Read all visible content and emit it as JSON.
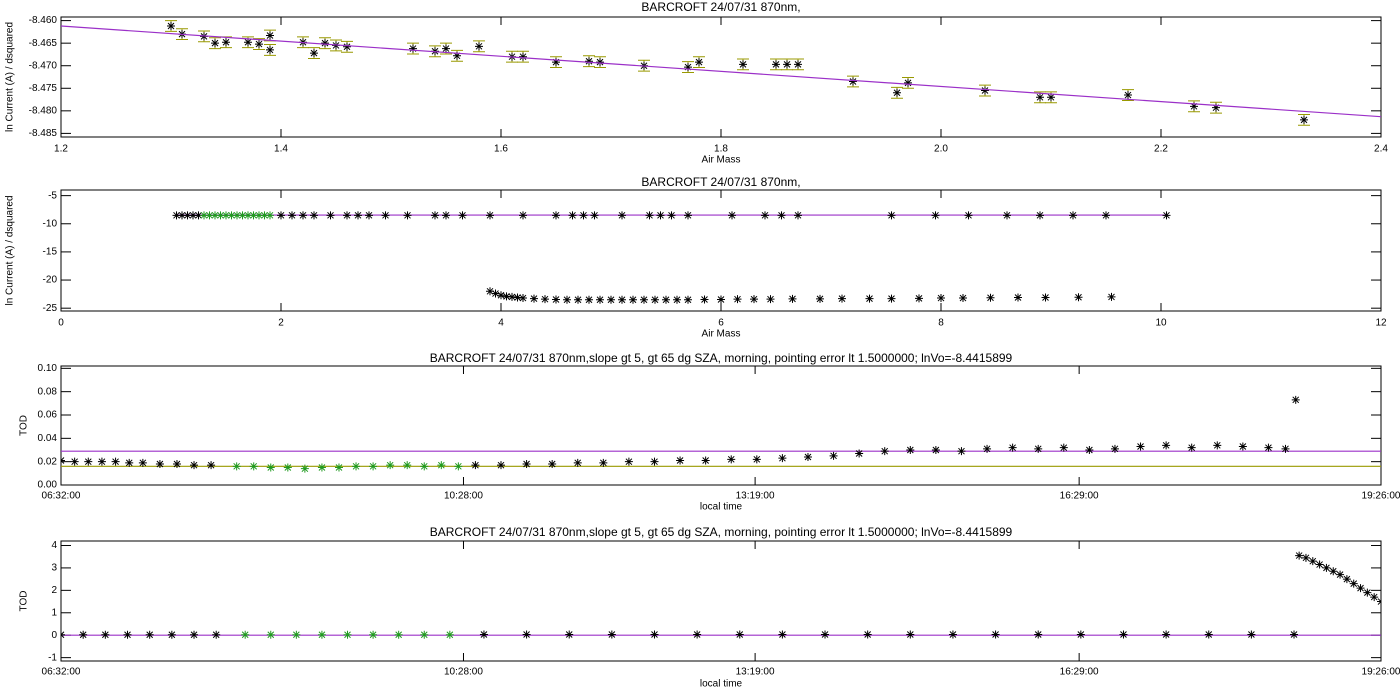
{
  "chart_data": [
    {
      "type": "scatter",
      "title": "BARCROFT 24/07/31 870nm,",
      "x_label": "Air Mass",
      "y_label": "ln Current (A) / dsquared",
      "xlim": [
        1.2,
        2.4
      ],
      "xticks": [
        1.2,
        1.4,
        1.6,
        1.8,
        {
          "value": 2,
          "label": "2.0"
        },
        2.2,
        2.4
      ],
      "ylim": [
        -8.4858,
        -8.4592
      ],
      "yticks": [
        {
          "value": -8.46,
          "label": "-8.460"
        },
        {
          "value": -8.465,
          "label": "-8.465"
        },
        {
          "value": -8.47,
          "label": "-8.470"
        },
        {
          "value": -8.475,
          "label": "-8.475"
        },
        {
          "value": -8.48,
          "label": "-8.480"
        },
        {
          "value": -8.485,
          "label": "-8.485"
        }
      ],
      "series": [
        {
          "marker": "asterisk",
          "color": "#000000",
          "error_color": "#999900",
          "x": [
            1.3,
            1.31,
            1.33,
            1.34,
            1.35,
            1.37,
            1.38,
            1.39,
            1.39,
            1.42,
            1.43,
            1.44,
            1.45,
            1.46,
            1.52,
            1.54,
            1.55,
            1.56,
            1.58,
            1.61,
            1.62,
            1.65,
            1.68,
            1.69,
            1.73,
            1.77,
            1.78,
            1.82,
            1.85,
            1.86,
            1.87,
            1.92,
            1.96,
            1.97,
            2.04,
            2.09,
            2.1,
            2.17,
            2.23,
            2.25,
            2.33
          ],
          "values": [
            -8.4612,
            -8.463,
            -8.4635,
            -8.465,
            -8.4648,
            -8.4648,
            -8.4652,
            -8.4665,
            -8.4633,
            -8.4648,
            -8.4672,
            -8.465,
            -8.4655,
            -8.4658,
            -8.4662,
            -8.4668,
            -8.4662,
            -8.4678,
            -8.4657,
            -8.468,
            -8.468,
            -8.4692,
            -8.469,
            -8.4692,
            -8.47,
            -8.4703,
            -8.4692,
            -8.4697,
            -8.4697,
            -8.4697,
            -8.4697,
            -8.4735,
            -8.476,
            -8.4738,
            -8.4755,
            -8.477,
            -8.477,
            -8.4765,
            -8.479,
            -8.4793,
            -8.482
          ],
          "errors": [
            0.0012,
            0.0012,
            0.0012,
            0.0012,
            0.0012,
            0.0012,
            0.0012,
            0.0012,
            0.0012,
            0.0012,
            0.0012,
            0.0012,
            0.0012,
            0.0012,
            0.0012,
            0.0012,
            0.0012,
            0.0012,
            0.0012,
            0.0012,
            0.0012,
            0.0012,
            0.0012,
            0.0012,
            0.0012,
            0.0012,
            0.0012,
            0.0012,
            0.0012,
            0.0012,
            0.0012,
            0.0012,
            0.0012,
            0.0012,
            0.0012,
            0.0012,
            0.0012,
            0.0012,
            0.0012,
            0.0012,
            0.0012
          ]
        },
        {
          "marker": "line",
          "color": "#9b30c8",
          "x": [
            1.2,
            2.4
          ],
          "values": [
            -8.4612,
            -8.4813
          ]
        }
      ]
    },
    {
      "type": "scatter",
      "title": "BARCROFT 24/07/31 870nm,",
      "x_label": "Air Mass",
      "y_label": "ln Current (A) / dsquared",
      "xlim": [
        0,
        12
      ],
      "xticks": [
        0,
        2,
        4,
        6,
        8,
        10,
        12
      ],
      "ylim": [
        -25.5,
        -4
      ],
      "yticks": [
        -5,
        -10,
        -15,
        -20,
        -25
      ],
      "series": [
        {
          "marker": "line",
          "color": "#9b30c8",
          "x": [
            1.05,
            10.05
          ],
          "values": [
            -8.45,
            -8.45
          ]
        },
        {
          "marker": "asterisk",
          "color": "#000000",
          "x": [
            1.05,
            1.1,
            1.15,
            1.2,
            1.25,
            2.0,
            2.1,
            2.2,
            2.3,
            2.45,
            2.6,
            2.7,
            2.8,
            2.95,
            3.15,
            3.4,
            3.5,
            3.65,
            3.9,
            4.2,
            4.5,
            4.65,
            4.75,
            4.85,
            5.1,
            5.35,
            5.45,
            5.55,
            5.7,
            6.1,
            6.4,
            6.55,
            6.7,
            7.55,
            7.95,
            8.25,
            8.6,
            8.9,
            9.2,
            9.5,
            10.05
          ],
          "values": [
            -8.5,
            -8.5,
            -8.5,
            -8.5,
            -8.5,
            -8.5,
            -8.5,
            -8.5,
            -8.5,
            -8.5,
            -8.5,
            -8.5,
            -8.5,
            -8.5,
            -8.5,
            -8.5,
            -8.5,
            -8.5,
            -8.5,
            -8.5,
            -8.5,
            -8.5,
            -8.5,
            -8.5,
            -8.5,
            -8.5,
            -8.5,
            -8.5,
            -8.5,
            -8.5,
            -8.5,
            -8.5,
            -8.5,
            -8.5,
            -8.5,
            -8.5,
            -8.5,
            -8.5,
            -8.5,
            -8.5,
            -8.5
          ]
        },
        {
          "marker": "asterisk",
          "color": "#1f9a1f",
          "x": [
            1.3,
            1.35,
            1.4,
            1.45,
            1.5,
            1.55,
            1.6,
            1.65,
            1.7,
            1.75,
            1.8,
            1.85,
            1.9
          ],
          "values": [
            -8.5,
            -8.5,
            -8.5,
            -8.5,
            -8.5,
            -8.5,
            -8.5,
            -8.5,
            -8.5,
            -8.5,
            -8.5,
            -8.5,
            -8.5
          ]
        },
        {
          "marker": "asterisk",
          "color": "#000000",
          "x": [
            3.9,
            3.95,
            4.0,
            4.05,
            4.1,
            4.15,
            4.2,
            4.3,
            4.4,
            4.5,
            4.6,
            4.7,
            4.8,
            4.9,
            5.0,
            5.1,
            5.2,
            5.3,
            5.4,
            5.5,
            5.6,
            5.7,
            5.85,
            6.0,
            6.15,
            6.3,
            6.45,
            6.65,
            6.9,
            7.1,
            7.35,
            7.55,
            7.8,
            8.0,
            8.2,
            8.45,
            8.7,
            8.95,
            9.25,
            9.55
          ],
          "values": [
            -22.0,
            -22.4,
            -22.7,
            -22.9,
            -23.0,
            -23.1,
            -23.2,
            -23.3,
            -23.4,
            -23.45,
            -23.5,
            -23.5,
            -23.5,
            -23.5,
            -23.5,
            -23.5,
            -23.5,
            -23.5,
            -23.5,
            -23.5,
            -23.5,
            -23.5,
            -23.45,
            -23.45,
            -23.4,
            -23.4,
            -23.4,
            -23.35,
            -23.35,
            -23.3,
            -23.3,
            -23.3,
            -23.25,
            -23.2,
            -23.2,
            -23.15,
            -23.1,
            -23.1,
            -23.05,
            -23.0
          ]
        }
      ]
    },
    {
      "type": "scatter",
      "title": "BARCROFT 24/07/31 870nm,slope gt 5, gt 65 dg SZA, morning, pointing error lt 1.5000000; lnVo=-8.4415899",
      "x_label": "local time",
      "y_label": "TOD",
      "xlim": [
        392,
        1166
      ],
      "xticks": [
        {
          "value": 392,
          "label": "06:32:00"
        },
        {
          "value": 628,
          "label": "10:28:00"
        },
        {
          "value": 799,
          "label": "13:19:00"
        },
        {
          "value": 989,
          "label": "16:29:00"
        },
        {
          "value": 1166,
          "label": "19:26:00"
        }
      ],
      "ylim": [
        0,
        0.102
      ],
      "yticks": [
        {
          "value": 0,
          "label": "0.00"
        },
        {
          "value": 0.02,
          "label": "0.02"
        },
        {
          "value": 0.04,
          "label": "0.04"
        },
        {
          "value": 0.06,
          "label": "0.06"
        },
        {
          "value": 0.08,
          "label": "0.08"
        },
        {
          "value": 0.1,
          "label": "0.10"
        }
      ],
      "series": [
        {
          "marker": "line",
          "color": "#9b30c8",
          "x": [
            392,
            1166
          ],
          "values": [
            0.029,
            0.029
          ]
        },
        {
          "marker": "line",
          "color": "#999900",
          "x": [
            392,
            1166
          ],
          "values": [
            0.016,
            0.016
          ]
        },
        {
          "marker": "asterisk",
          "color": "#000000",
          "x": [
            392,
            400,
            408,
            416,
            424,
            432,
            440,
            450,
            460,
            470,
            480
          ],
          "values": [
            0.021,
            0.02,
            0.02,
            0.02,
            0.02,
            0.019,
            0.019,
            0.018,
            0.018,
            0.017,
            0.017
          ]
        },
        {
          "marker": "asterisk",
          "color": "#1f9a1f",
          "x": [
            495,
            505,
            515,
            525,
            535,
            545,
            555,
            565,
            575
          ],
          "values": [
            0.016,
            0.016,
            0.015,
            0.015,
            0.014,
            0.015,
            0.015,
            0.016,
            0.016
          ]
        },
        {
          "marker": "asterisk",
          "color": "#1f9a1f",
          "x": [
            585,
            595,
            605,
            615,
            625
          ],
          "values": [
            0.017,
            0.017,
            0.016,
            0.017,
            0.016
          ]
        },
        {
          "marker": "asterisk",
          "color": "#000000",
          "x": [
            635,
            650,
            665,
            680,
            695,
            710,
            725,
            740,
            755,
            770,
            785,
            800,
            815,
            830,
            845,
            860,
            875,
            890,
            905,
            920,
            935,
            950,
            965,
            980,
            995,
            1010,
            1025,
            1040,
            1055,
            1070,
            1085,
            1100,
            1110
          ],
          "values": [
            0.017,
            0.017,
            0.018,
            0.018,
            0.019,
            0.019,
            0.02,
            0.02,
            0.021,
            0.021,
            0.022,
            0.022,
            0.023,
            0.024,
            0.025,
            0.027,
            0.029,
            0.03,
            0.03,
            0.029,
            0.031,
            0.032,
            0.031,
            0.032,
            0.03,
            0.031,
            0.033,
            0.034,
            0.032,
            0.034,
            0.033,
            0.032,
            0.031
          ]
        },
        {
          "marker": "asterisk",
          "color": "#000000",
          "x": [
            1116
          ],
          "values": [
            0.073
          ]
        }
      ]
    },
    {
      "type": "scatter",
      "title": "BARCROFT 24/07/31 870nm,slope gt 5, gt 65 dg SZA, morning, pointing error lt 1.5000000; lnVo=-8.4415899",
      "x_label": "local time",
      "y_label": "TOD",
      "xlim": [
        392,
        1166
      ],
      "xticks": [
        {
          "value": 392,
          "label": "06:32:00"
        },
        {
          "value": 628,
          "label": "10:28:00"
        },
        {
          "value": 799,
          "label": "13:19:00"
        },
        {
          "value": 989,
          "label": "16:29:00"
        },
        {
          "value": 1166,
          "label": "19:26:00"
        }
      ],
      "ylim": [
        -1.15,
        4.2
      ],
      "yticks": [
        -1,
        0,
        1,
        2,
        3,
        4
      ],
      "series": [
        {
          "marker": "line",
          "color": "#9b30c8",
          "x": [
            392,
            1166
          ],
          "values": [
            0,
            0
          ]
        },
        {
          "marker": "asterisk",
          "color": "#000000",
          "x": [
            392,
            405,
            418,
            431,
            444,
            457,
            470,
            483
          ],
          "values": [
            0.02,
            0.02,
            0.02,
            0.02,
            0.02,
            0.02,
            0.02,
            0.02
          ]
        },
        {
          "marker": "asterisk",
          "color": "#1f9a1f",
          "x": [
            500,
            515,
            530,
            545,
            560,
            575
          ],
          "values": [
            0.02,
            0.02,
            0.02,
            0.02,
            0.02,
            0.02
          ]
        },
        {
          "marker": "asterisk",
          "color": "#1f9a1f",
          "x": [
            590,
            605,
            620
          ],
          "values": [
            0.02,
            0.02,
            0.02
          ]
        },
        {
          "marker": "asterisk",
          "color": "#000000",
          "x": [
            640,
            665,
            690,
            715,
            740,
            765,
            790,
            815,
            840,
            865,
            890,
            915,
            940,
            965,
            990,
            1015,
            1040,
            1065,
            1090,
            1115
          ],
          "values": [
            0.03,
            0.03,
            0.03,
            0.03,
            0.03,
            0.03,
            0.03,
            0.03,
            0.03,
            0.03,
            0.03,
            0.03,
            0.03,
            0.03,
            0.03,
            0.03,
            0.03,
            0.03,
            0.03,
            0.03
          ]
        },
        {
          "marker": "asterisk",
          "color": "#000000",
          "x": [
            1118,
            1122,
            1126,
            1130,
            1134,
            1138,
            1142,
            1146,
            1150,
            1154,
            1158,
            1162,
            1166
          ],
          "values": [
            3.55,
            3.45,
            3.3,
            3.15,
            3.0,
            2.85,
            2.7,
            2.5,
            2.3,
            2.1,
            1.9,
            1.7,
            1.5
          ]
        }
      ]
    }
  ]
}
